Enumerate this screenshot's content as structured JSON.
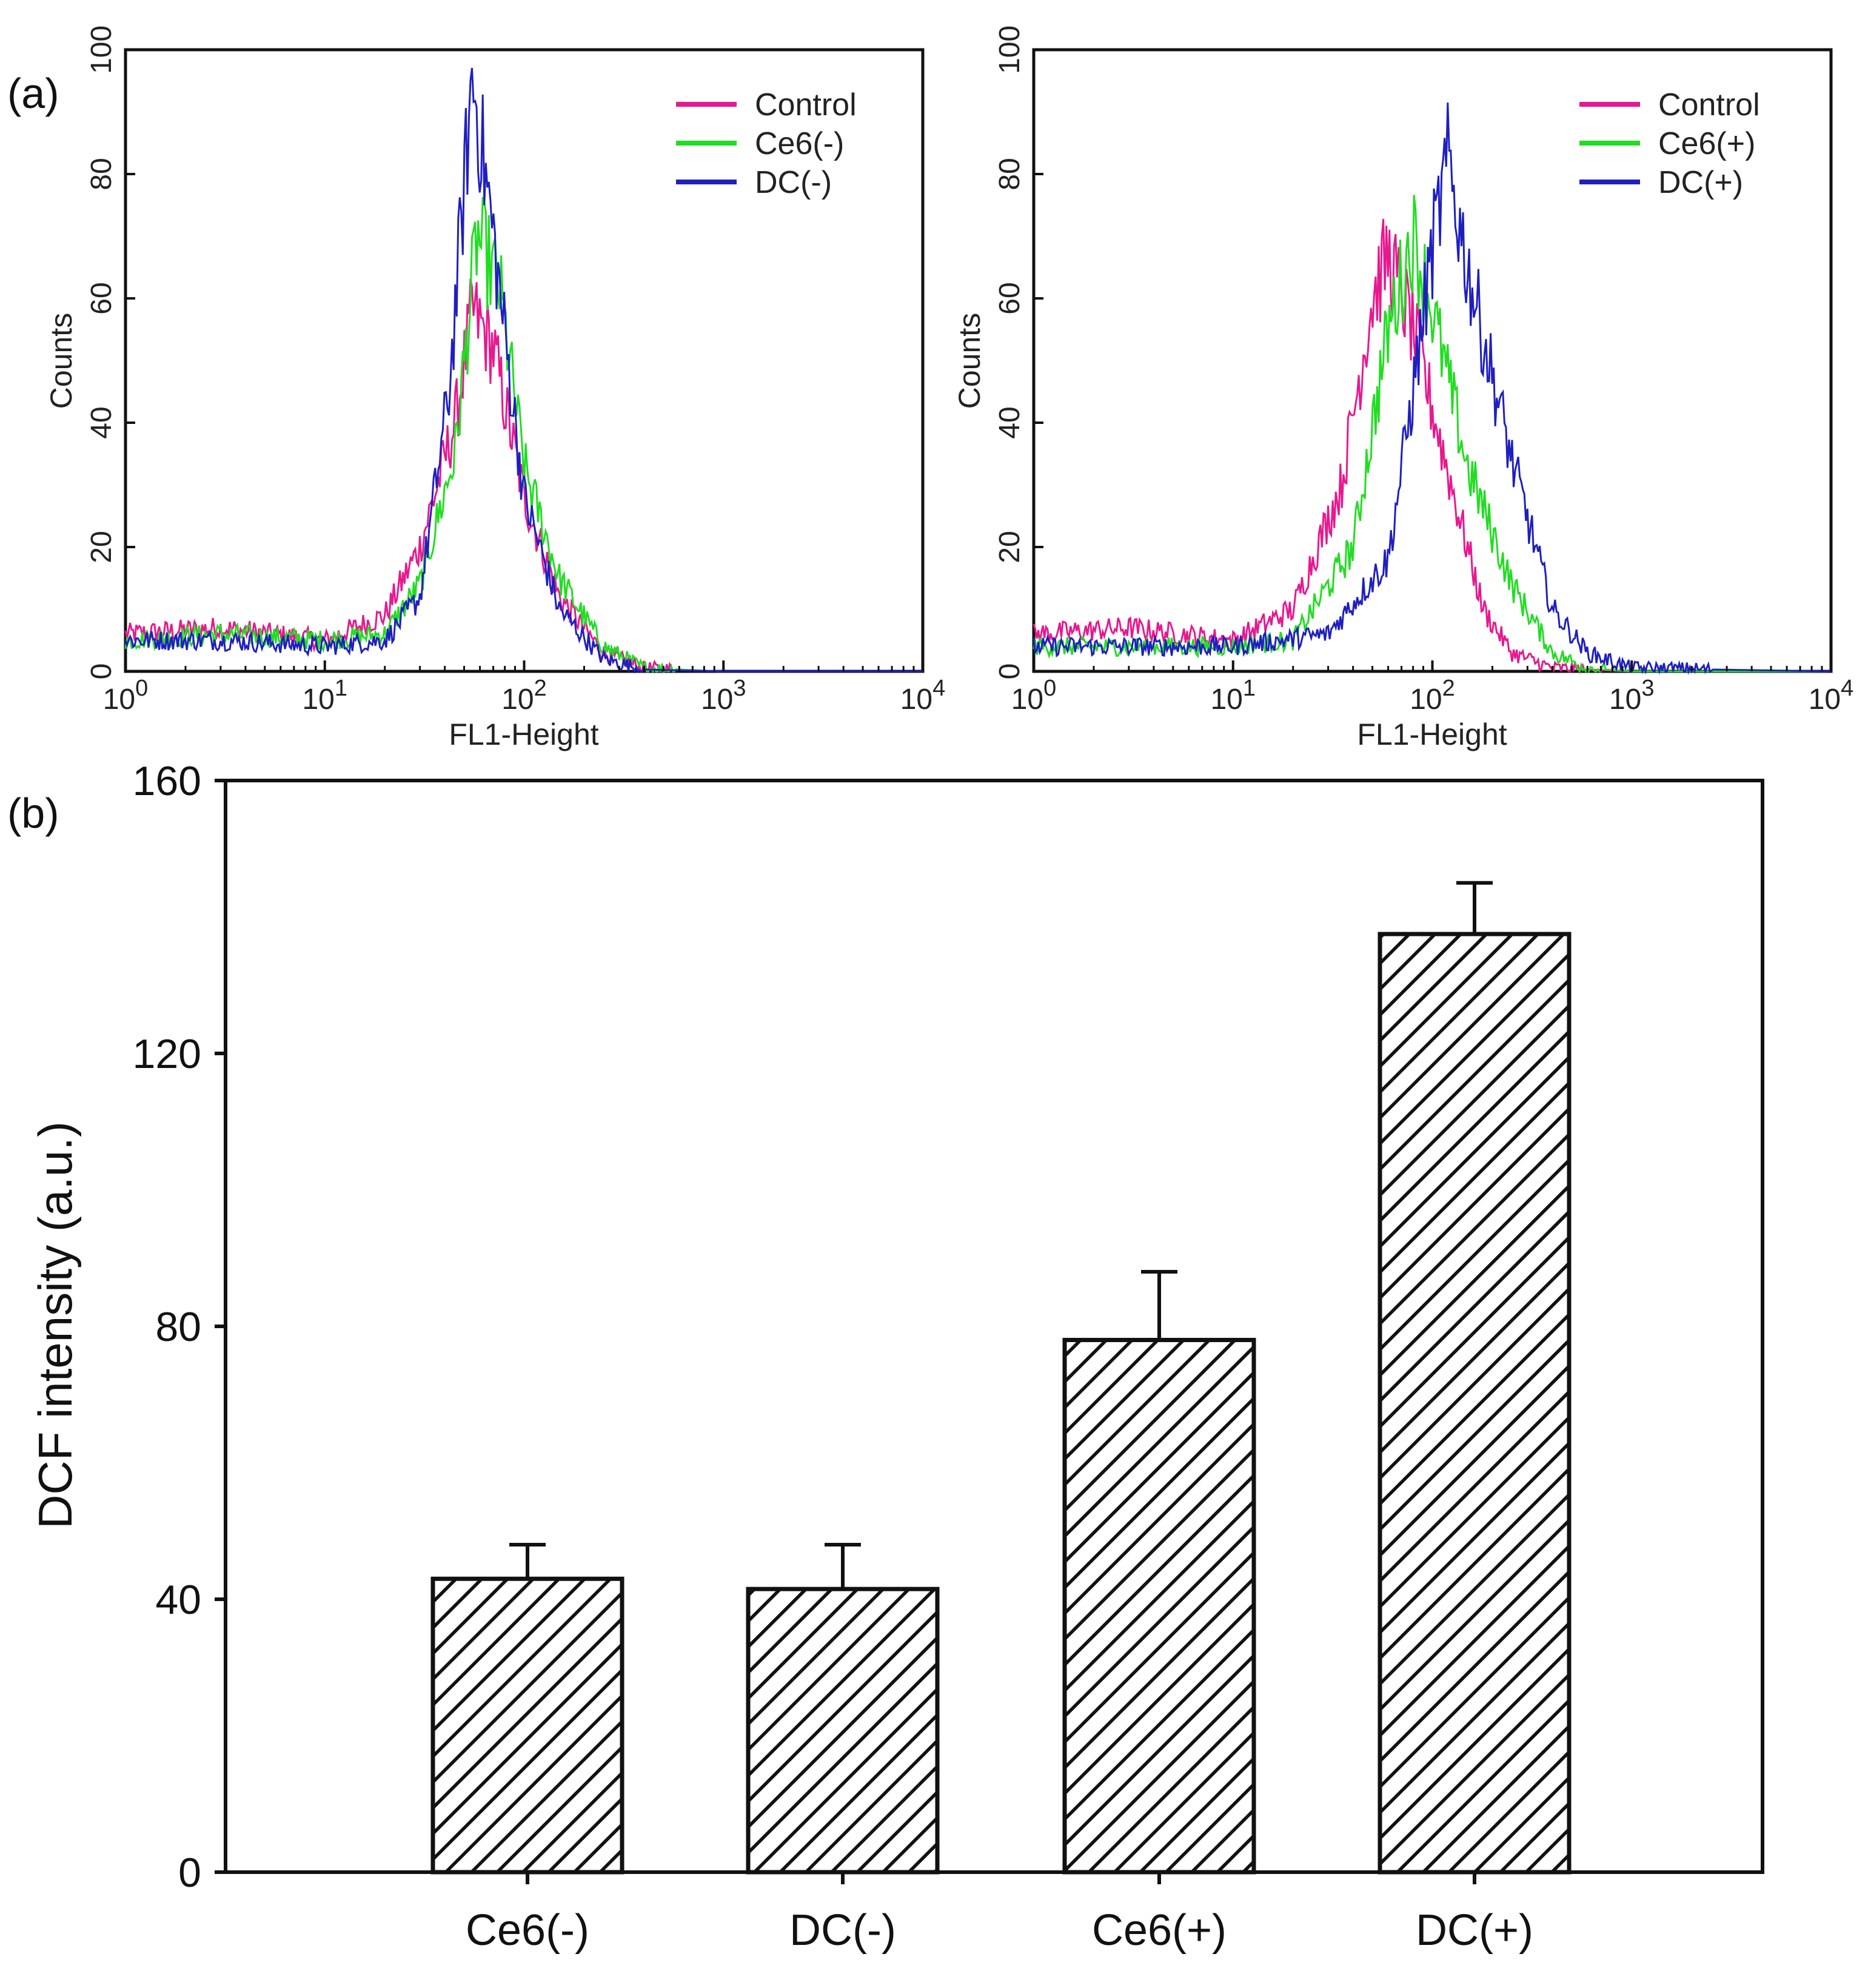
{
  "panel_a_letter": "(a)",
  "panel_b_letter": "(b)",
  "chart_data": [
    {
      "type": "line",
      "panel": "(a) left",
      "xlabel": "FL1-Height",
      "ylabel": "Counts",
      "xscale": "log",
      "xlim": [
        1,
        10000
      ],
      "ylim": [
        0,
        100
      ],
      "x_tick_labels": [
        {
          "base": "10",
          "exp": "0"
        },
        {
          "base": "10",
          "exp": "1"
        },
        {
          "base": "10",
          "exp": "2"
        },
        {
          "base": "10",
          "exp": "3"
        },
        {
          "base": "10",
          "exp": "4"
        }
      ],
      "y_ticks": [
        "0",
        "20",
        "40",
        "60",
        "80",
        "100"
      ],
      "legend_position": "top-right",
      "series": [
        {
          "name": "Control",
          "color": "#e6198f",
          "x": [
            1,
            3,
            10,
            20,
            30,
            45,
            55,
            70,
            100,
            150,
            250,
            400,
            1000,
            10000
          ],
          "values": [
            6,
            7,
            5,
            9,
            20,
            40,
            58,
            52,
            28,
            12,
            3,
            0.5,
            0,
            0
          ]
        },
        {
          "name": "Ce6(-)",
          "color": "#22dd22",
          "x": [
            1,
            3,
            10,
            20,
            30,
            45,
            58,
            75,
            100,
            150,
            250,
            400,
            1000,
            10000
          ],
          "values": [
            5,
            6,
            5,
            6,
            14,
            35,
            70,
            62,
            33,
            15,
            4,
            0.5,
            0,
            0
          ]
        },
        {
          "name": "DC(-)",
          "color": "#1f1fbf",
          "x": [
            1,
            3,
            10,
            20,
            30,
            42,
            55,
            70,
            100,
            150,
            250,
            400,
            1000,
            10000
          ],
          "values": [
            5,
            5,
            4,
            5,
            12,
            45,
            96,
            70,
            28,
            10,
            2,
            0.3,
            0,
            0
          ]
        }
      ]
    },
    {
      "type": "line",
      "panel": "(a) right",
      "xlabel": "FL1-Height",
      "ylabel": "Counts",
      "xscale": "log",
      "xlim": [
        1,
        10000
      ],
      "ylim": [
        0,
        100
      ],
      "x_tick_labels": [
        {
          "base": "10",
          "exp": "0"
        },
        {
          "base": "10",
          "exp": "1"
        },
        {
          "base": "10",
          "exp": "2"
        },
        {
          "base": "10",
          "exp": "3"
        },
        {
          "base": "10",
          "exp": "4"
        }
      ],
      "y_ticks": [
        "0",
        "20",
        "40",
        "60",
        "80",
        "100"
      ],
      "legend_position": "top-right",
      "series": [
        {
          "name": "Control",
          "color": "#e6198f",
          "x": [
            1,
            3,
            10,
            20,
            35,
            50,
            60,
            80,
            120,
            180,
            250,
            400,
            1000,
            10000
          ],
          "values": [
            6,
            7,
            5,
            10,
            30,
            60,
            67,
            55,
            32,
            10,
            3,
            0.5,
            0,
            0
          ]
        },
        {
          "name": "Ce6(+)",
          "color": "#22dd22",
          "x": [
            1,
            3,
            10,
            20,
            40,
            60,
            80,
            100,
            150,
            250,
            400,
            600,
            1000,
            10000
          ],
          "values": [
            4,
            4,
            4,
            5,
            20,
            55,
            70,
            58,
            33,
            14,
            3,
            0.5,
            0,
            0
          ]
        },
        {
          "name": "DC(+)",
          "color": "#1f1fbf",
          "x": [
            1,
            3,
            10,
            30,
            60,
            80,
            100,
            120,
            150,
            250,
            400,
            600,
            1000,
            10000
          ],
          "values": [
            4,
            4,
            4,
            6,
            18,
            45,
            68,
            82,
            65,
            34,
            10,
            3,
            0.5,
            0
          ]
        }
      ]
    },
    {
      "type": "bar",
      "panel": "(b)",
      "pattern": "diagonal hatch",
      "categories": [
        "Ce6(-)",
        "DC(-)",
        "Ce6(+)",
        "DC(+)"
      ],
      "values": [
        43,
        41.5,
        78,
        137.5
      ],
      "error": [
        5,
        6.5,
        10,
        7.5
      ],
      "ylabel": "DCF intensity (a.u.)",
      "xlabel": "",
      "ylim": [
        0,
        160
      ],
      "y_ticks": [
        "0",
        "40",
        "80",
        "120",
        "160"
      ]
    }
  ]
}
